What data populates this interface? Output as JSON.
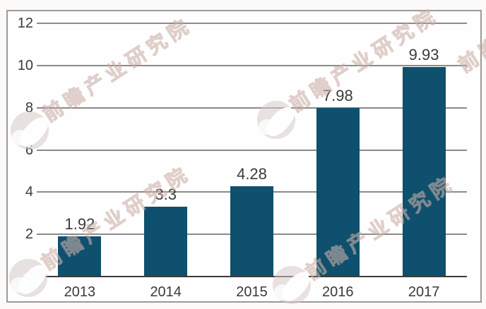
{
  "chart_data": {
    "type": "bar",
    "title": "",
    "xlabel": "",
    "ylabel": "",
    "categories": [
      "2013",
      "2014",
      "2015",
      "2016",
      "2017"
    ],
    "values": [
      1.92,
      3.3,
      4.28,
      7.98,
      9.93
    ],
    "value_labels": [
      "1.92",
      "3.3",
      "4.28",
      "7.98",
      "9.93"
    ],
    "ylim": [
      0,
      12
    ],
    "yticks": [
      0,
      2,
      4,
      6,
      8,
      10,
      12
    ],
    "grid": true,
    "legend_position": "none",
    "bar_color": "#0e506d"
  },
  "watermark": {
    "text": "前瞻产业研究院"
  },
  "colors": {
    "bar": "#0e506d",
    "gridline": "#8a8a8a",
    "axis_line": "#3c3c3c",
    "label_text": "#3a3a3a",
    "frame_border": "#9a9a9a",
    "background": "#fbfaf9",
    "watermark_tint": "#c6aaa2"
  }
}
